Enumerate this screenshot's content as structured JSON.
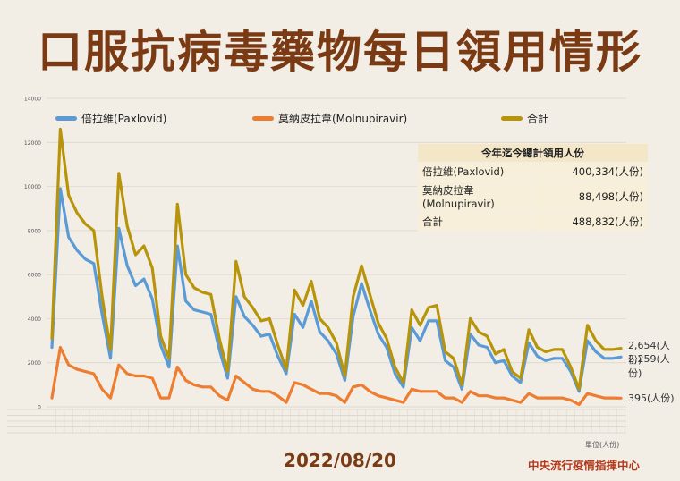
{
  "title": "口服抗病毒藥物每日領用情形",
  "date": "2022/08/20",
  "unit_label": "單位(人份)",
  "org": "中央流行疫情指揮中心",
  "colors": {
    "paxlovid": "#5b9bd5",
    "molnupiravir": "#ed7d31",
    "total": "#b8940a",
    "title": "#7a3a14"
  },
  "summary": {
    "header": "今年迄今總計領用人份",
    "rows": [
      {
        "name": "倍拉維(Paxlovid)",
        "value": "400,334(人份)"
      },
      {
        "name": "莫納皮拉韋(Molnupiravir)",
        "value": "88,498(人份)"
      },
      {
        "name": "合計",
        "value": "488,832(人份)"
      }
    ]
  },
  "end_labels": {
    "total": "2,654(人份)",
    "paxlovid": "2,259(人份)",
    "molnupiravir": "395(人份)"
  },
  "chart_data": {
    "type": "line",
    "ylim": [
      0,
      14000
    ],
    "yticks": [
      0,
      2000,
      4000,
      6000,
      8000,
      10000,
      12000,
      14000
    ],
    "grid": true,
    "legend_position": "top",
    "series": [
      {
        "name": "倍拉維(Paxlovid)",
        "key": "paxlovid",
        "values": [
          2700,
          9900,
          7700,
          7100,
          6700,
          6500,
          4200,
          2200,
          8100,
          6400,
          5500,
          5800,
          4900,
          2800,
          1800,
          7300,
          4800,
          4400,
          4300,
          4200,
          2600,
          1300,
          5000,
          4100,
          3700,
          3200,
          3300,
          2300,
          1500,
          4200,
          3600,
          4800,
          3400,
          3000,
          2400,
          1200,
          4100,
          5600,
          4400,
          3300,
          2700,
          1500,
          900,
          3600,
          3000,
          3900,
          3900,
          2100,
          1800,
          800,
          3300,
          2800,
          2700,
          2000,
          2100,
          1400,
          1100,
          2900,
          2300,
          2100,
          2200,
          2200,
          1600,
          700,
          3000,
          2500,
          2200,
          2200,
          2259
        ]
      },
      {
        "name": "莫納皮拉韋(Molnupiravir)",
        "key": "molnupiravir",
        "values": [
          400,
          2700,
          1900,
          1700,
          1600,
          1500,
          800,
          400,
          1900,
          1500,
          1400,
          1400,
          1300,
          400,
          400,
          1800,
          1200,
          1000,
          900,
          900,
          500,
          300,
          1400,
          1100,
          800,
          700,
          700,
          500,
          200,
          1100,
          1000,
          800,
          600,
          600,
          500,
          200,
          900,
          1000,
          700,
          500,
          400,
          300,
          200,
          800,
          700,
          700,
          700,
          400,
          400,
          200,
          700,
          500,
          500,
          400,
          400,
          300,
          200,
          600,
          400,
          400,
          400,
          400,
          300,
          100,
          600,
          500,
          400,
          400,
          395
        ]
      },
      {
        "name": "合計",
        "key": "total",
        "values": [
          3100,
          12600,
          9600,
          8800,
          8300,
          8000,
          5000,
          2600,
          10600,
          8200,
          6900,
          7300,
          6300,
          3200,
          2200,
          9200,
          6000,
          5400,
          5200,
          5100,
          3100,
          1600,
          6600,
          5000,
          4500,
          3900,
          4000,
          2800,
          1700,
          5300,
          4600,
          5700,
          4000,
          3600,
          2900,
          1400,
          5000,
          6400,
          5100,
          3800,
          3100,
          1800,
          1100,
          4400,
          3700,
          4500,
          4600,
          2500,
          2200,
          1000,
          4000,
          3400,
          3200,
          2400,
          2600,
          1600,
          1300,
          3500,
          2700,
          2500,
          2600,
          2600,
          1800,
          800,
          3700,
          3000,
          2600,
          2600,
          2654
        ]
      }
    ]
  }
}
